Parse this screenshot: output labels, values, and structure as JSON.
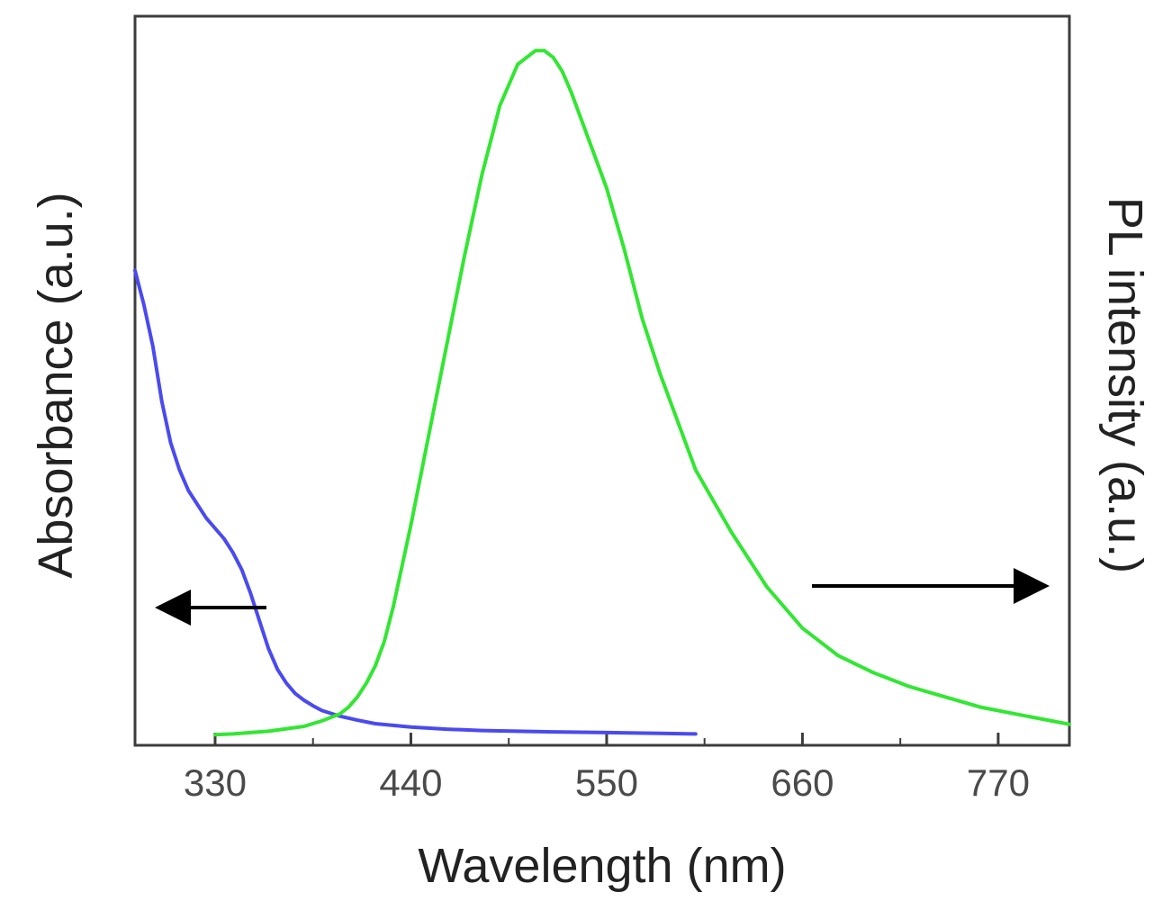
{
  "chart_data": {
    "type": "line",
    "xlabel": "Wavelength (nm)",
    "ylabel_left": "Absorbance (a.u.)",
    "ylabel_right": "PL intensity (a.u.)",
    "xlim": [
      285,
      810
    ],
    "ylim": [
      0,
      1.05
    ],
    "x_ticks": [
      330,
      440,
      550,
      660,
      770
    ],
    "grid": false,
    "legend": "none",
    "annotations": [
      {
        "type": "arrow",
        "direction": "left",
        "target_axis": "left",
        "color": "#000000"
      },
      {
        "type": "arrow",
        "direction": "right",
        "target_axis": "right",
        "color": "#000000"
      }
    ],
    "series": [
      {
        "axis": "left",
        "color": "#4a4af0",
        "x": [
          285,
          290,
          295,
          300,
          305,
          310,
          315,
          320,
          325,
          330,
          335,
          340,
          345,
          350,
          355,
          360,
          365,
          370,
          375,
          380,
          385,
          390,
          400,
          410,
          420,
          440,
          460,
          480,
          500,
          520,
          550,
          580,
          600
        ],
        "y": [
          0.68,
          0.63,
          0.57,
          0.49,
          0.43,
          0.39,
          0.36,
          0.34,
          0.32,
          0.305,
          0.29,
          0.27,
          0.245,
          0.21,
          0.17,
          0.13,
          0.1,
          0.08,
          0.065,
          0.055,
          0.047,
          0.04,
          0.032,
          0.026,
          0.021,
          0.016,
          0.013,
          0.011,
          0.01,
          0.009,
          0.008,
          0.007,
          0.006
        ]
      },
      {
        "axis": "right",
        "color": "#33e633",
        "x": [
          330,
          340,
          360,
          380,
          390,
          400,
          405,
          410,
          415,
          420,
          425,
          430,
          435,
          440,
          450,
          460,
          470,
          480,
          490,
          500,
          510,
          515,
          520,
          525,
          530,
          540,
          550,
          560,
          570,
          580,
          590,
          600,
          620,
          640,
          660,
          680,
          700,
          720,
          740,
          760,
          780,
          800,
          810
        ],
        "y": [
          0.005,
          0.006,
          0.01,
          0.017,
          0.025,
          0.035,
          0.045,
          0.06,
          0.08,
          0.105,
          0.14,
          0.19,
          0.25,
          0.31,
          0.44,
          0.57,
          0.7,
          0.82,
          0.92,
          0.98,
          1.0,
          1.0,
          0.99,
          0.97,
          0.94,
          0.87,
          0.8,
          0.71,
          0.61,
          0.53,
          0.46,
          0.39,
          0.3,
          0.22,
          0.16,
          0.12,
          0.095,
          0.075,
          0.06,
          0.045,
          0.035,
          0.025,
          0.02
        ]
      }
    ]
  }
}
